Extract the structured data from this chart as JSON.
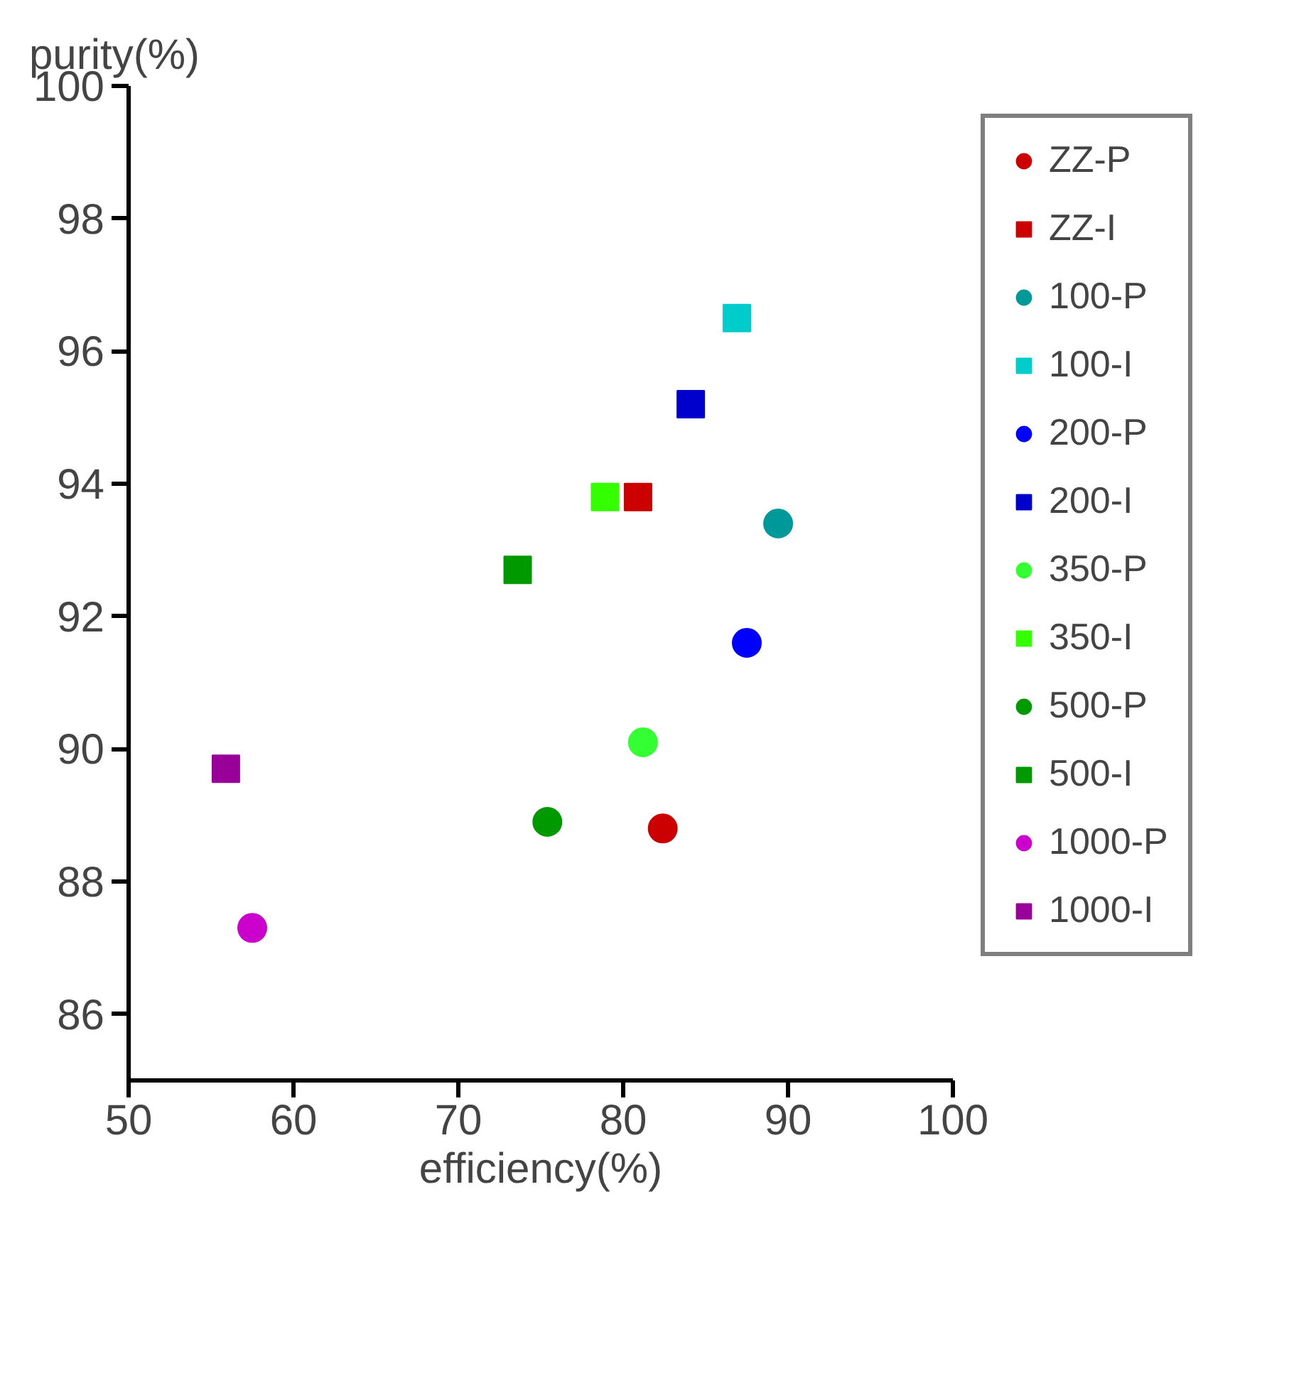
{
  "chart_data": {
    "type": "scatter",
    "xlabel": "efficiency(%)",
    "ylabel": "purity(%)",
    "xlim": [
      50,
      100
    ],
    "ylim": [
      85,
      100
    ],
    "xticks": [
      50,
      60,
      70,
      80,
      90,
      100
    ],
    "yticks": [
      86,
      88,
      90,
      92,
      94,
      96,
      98,
      100
    ],
    "grid": false,
    "legend": "right",
    "series": [
      {
        "name": "ZZ-P",
        "color": "#cc0000",
        "marker": "circle",
        "x": [
          82.4
        ],
        "values": [
          88.8
        ]
      },
      {
        "name": "ZZ-I",
        "color": "#cc0000",
        "marker": "square",
        "x": [
          80.9
        ],
        "values": [
          93.8
        ]
      },
      {
        "name": "100-P",
        "color": "#009999",
        "marker": "circle",
        "x": [
          89.4
        ],
        "values": [
          93.4
        ]
      },
      {
        "name": "100-I",
        "color": "#00cccc",
        "marker": "square",
        "x": [
          86.9
        ],
        "values": [
          96.5
        ]
      },
      {
        "name": "200-P",
        "color": "#0000ff",
        "marker": "circle",
        "x": [
          87.5
        ],
        "values": [
          91.6
        ]
      },
      {
        "name": "200-I",
        "color": "#0000cc",
        "marker": "square",
        "x": [
          84.1
        ],
        "values": [
          95.2
        ]
      },
      {
        "name": "350-P",
        "color": "#33ff33",
        "marker": "circle",
        "x": [
          81.2
        ],
        "values": [
          90.1
        ]
      },
      {
        "name": "350-I",
        "color": "#33ff00",
        "marker": "square",
        "x": [
          78.9
        ],
        "values": [
          93.8
        ]
      },
      {
        "name": "500-P",
        "color": "#009900",
        "marker": "circle",
        "x": [
          75.4
        ],
        "values": [
          88.9
        ]
      },
      {
        "name": "500-I",
        "color": "#009900",
        "marker": "square",
        "x": [
          73.6
        ],
        "values": [
          92.7
        ]
      },
      {
        "name": "1000-P",
        "color": "#cc00cc",
        "marker": "circle",
        "x": [
          57.5
        ],
        "values": [
          87.3
        ]
      },
      {
        "name": "1000-I",
        "color": "#990099",
        "marker": "square",
        "x": [
          55.9
        ],
        "values": [
          89.7
        ]
      }
    ]
  }
}
